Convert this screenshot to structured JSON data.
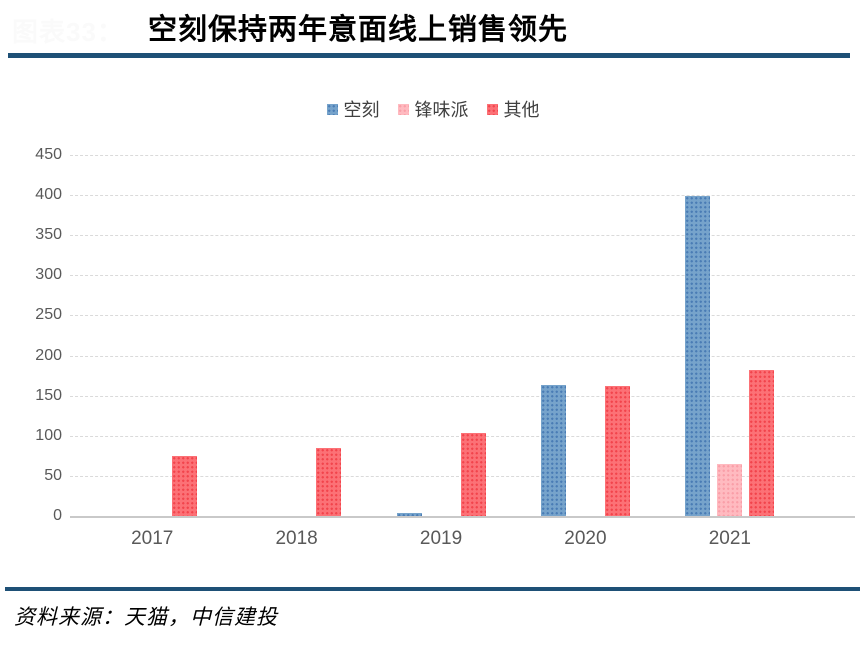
{
  "header": {
    "ghost_label": "图表33：",
    "title": "空刻保持两年意面线上销售领先"
  },
  "colors": {
    "rule_blue": "#1e5076",
    "grid": "#dadada",
    "baseline": "#c9c9c9",
    "axis_text": "#595959"
  },
  "chart_data": {
    "type": "bar",
    "title": "空刻保持两年意面线上销售领先",
    "categories": [
      "2017",
      "2018",
      "2019",
      "2020",
      "2021"
    ],
    "series": [
      {
        "name": "空刻",
        "slug": "kongke",
        "color": "#76a3cb",
        "dot_color": "#4a7cb5",
        "values": [
          0,
          0,
          4,
          163,
          399
        ]
      },
      {
        "name": "锋味派",
        "slug": "fengweipai",
        "color": "#ffbac0",
        "dot_color": "#fa9ea8",
        "values": [
          0,
          0,
          0,
          0,
          65
        ]
      },
      {
        "name": "其他",
        "slug": "qita",
        "color": "#fc7176",
        "dot_color": "#f2444c",
        "values": [
          75,
          85,
          103,
          162,
          182
        ]
      }
    ],
    "xlabel": "",
    "ylabel": "",
    "ylim": [
      0,
      450
    ],
    "yticks": [
      0,
      50,
      100,
      150,
      200,
      250,
      300,
      350,
      400,
      450
    ],
    "grid": true,
    "gridline_style": "dashed",
    "legend_position": "top"
  },
  "footer": {
    "source": "资料来源：天猫，中信建投"
  }
}
